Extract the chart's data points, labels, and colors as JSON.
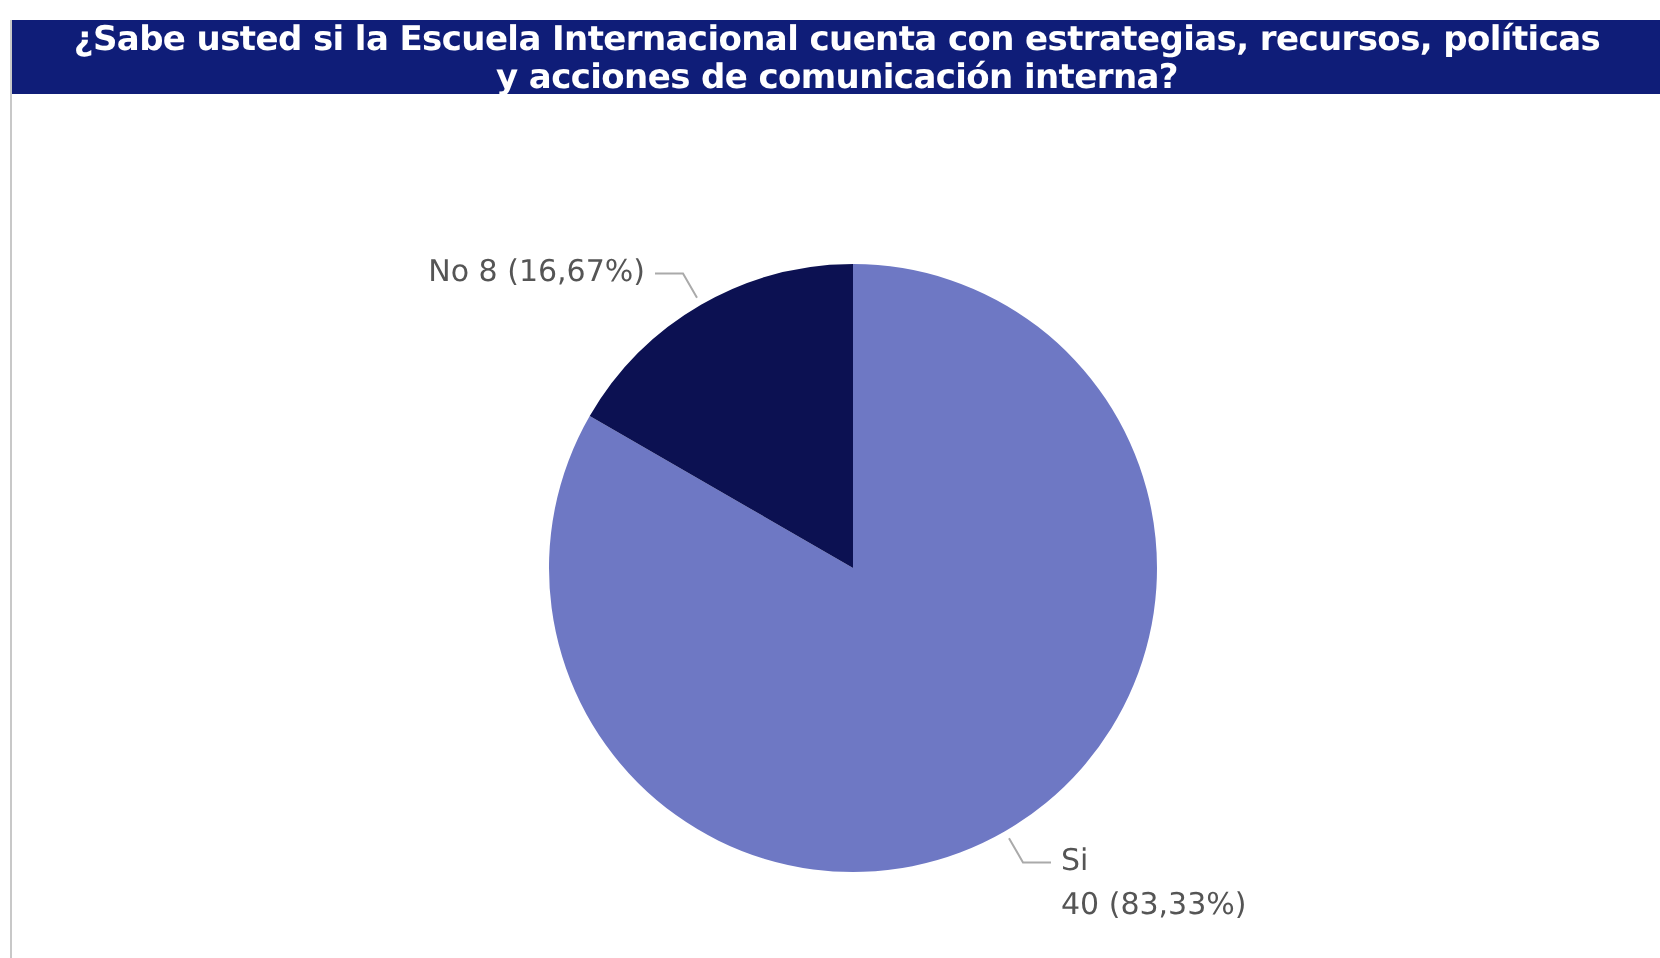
{
  "chart_data": {
    "type": "pie",
    "title": "¿Sabe usted si la Escuela Internacional cuenta con estrategias, recursos, políticas y acciones de comunicación interna?",
    "categories": [
      "Si",
      "No"
    ],
    "values": [
      40,
      8
    ],
    "colors": [
      "#6e78c4",
      "#0c1152"
    ],
    "value_labels": [
      "40 (83,33%)",
      "8 (16,67%)"
    ],
    "legend": false
  }
}
